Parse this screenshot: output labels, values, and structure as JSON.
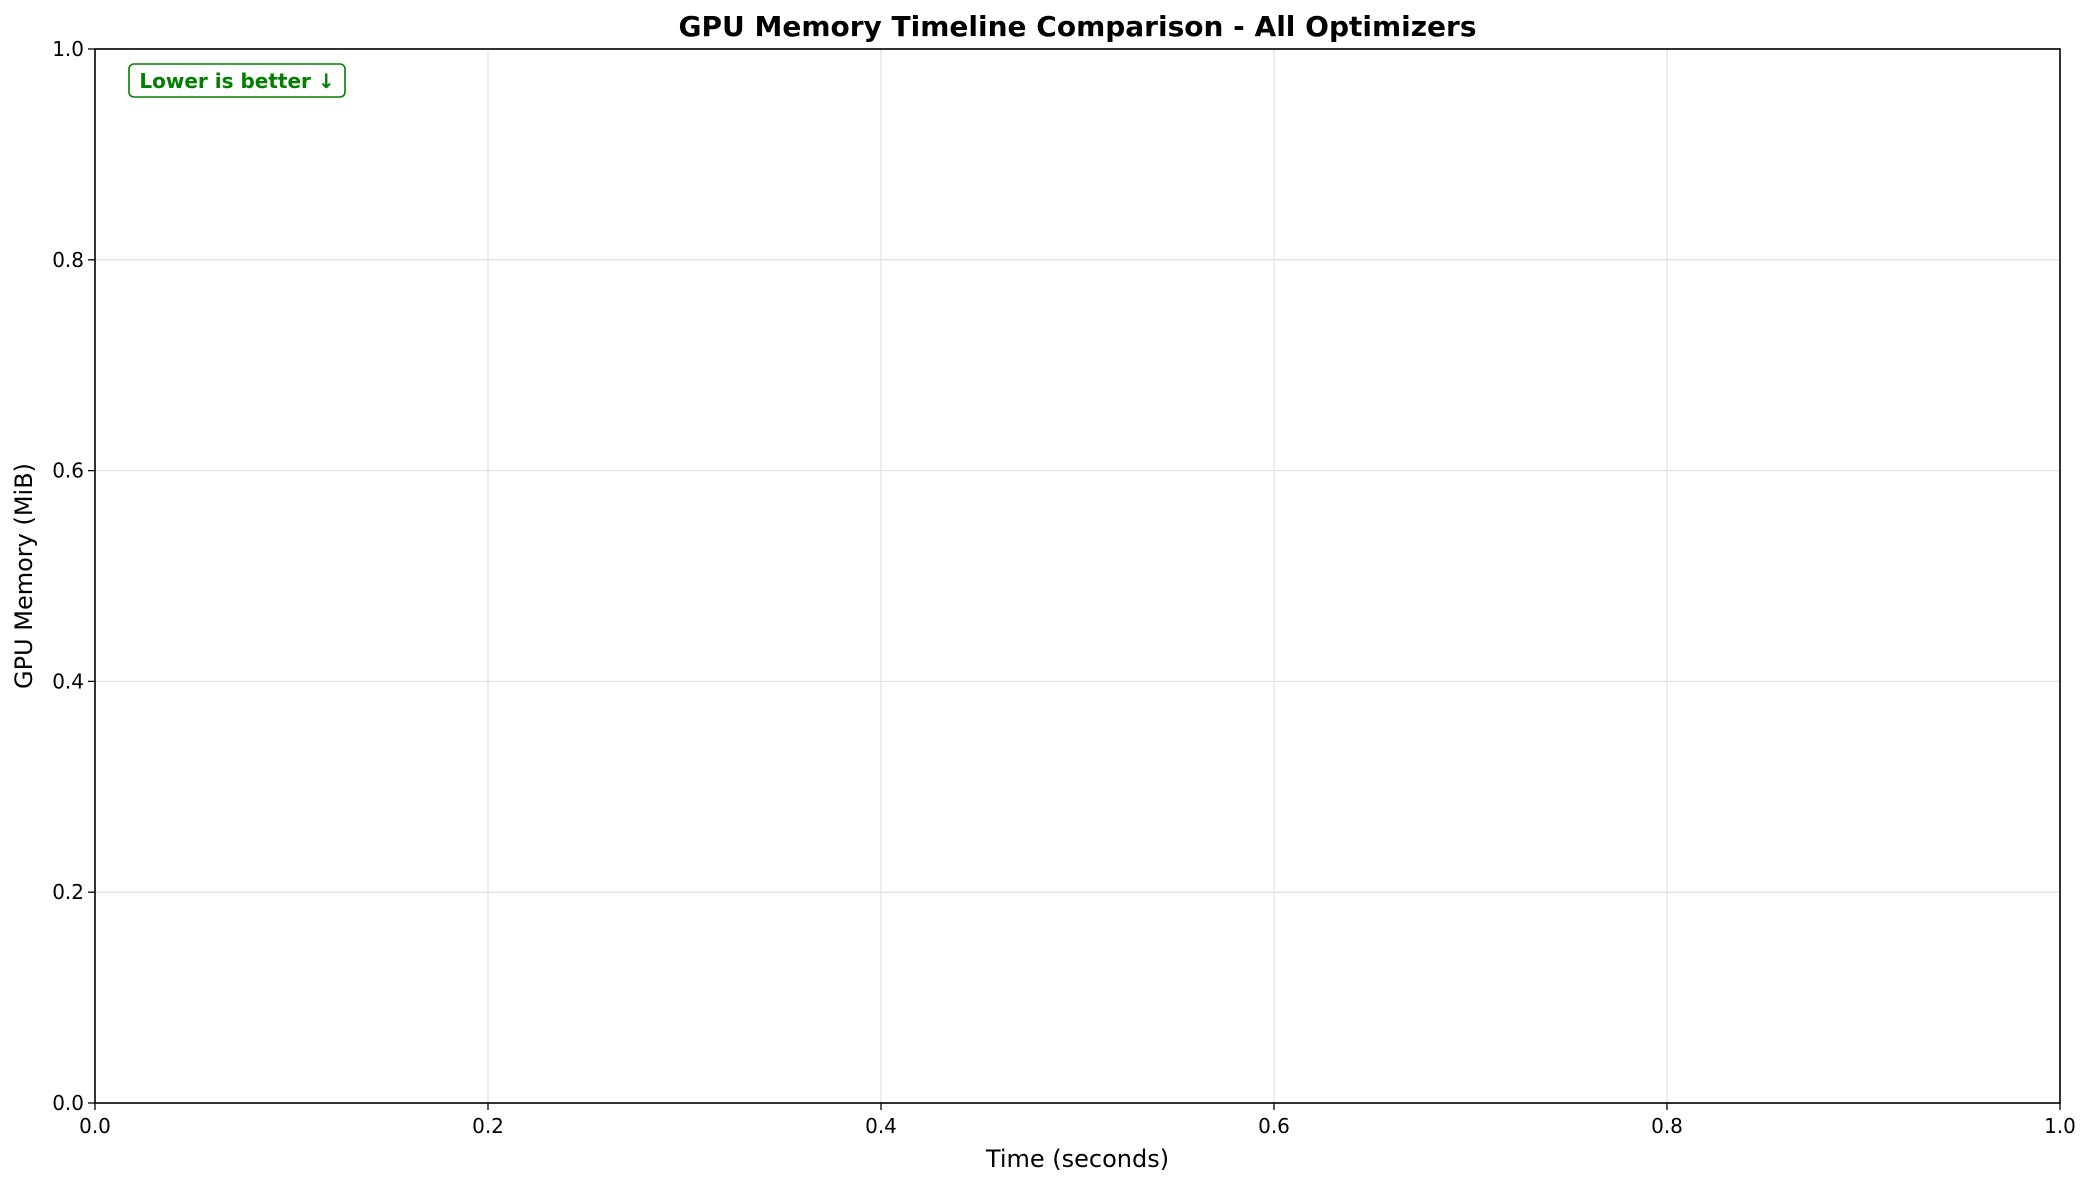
{
  "chart_data": {
    "type": "line",
    "title": "GPU Memory Timeline Comparison - All Optimizers",
    "xlabel": "Time (seconds)",
    "ylabel": "GPU Memory (MiB)",
    "xlim": [
      0.0,
      1.0
    ],
    "ylim": [
      0.0,
      1.0
    ],
    "xticks": [
      "0.0",
      "0.2",
      "0.4",
      "0.6",
      "0.8",
      "1.0"
    ],
    "yticks": [
      "0.0",
      "0.2",
      "0.4",
      "0.6",
      "0.8",
      "1.0"
    ],
    "grid": true,
    "series": [],
    "annotations": [
      {
        "text": "Lower is better ↓",
        "position": "top-left",
        "color": "#008000"
      }
    ]
  }
}
